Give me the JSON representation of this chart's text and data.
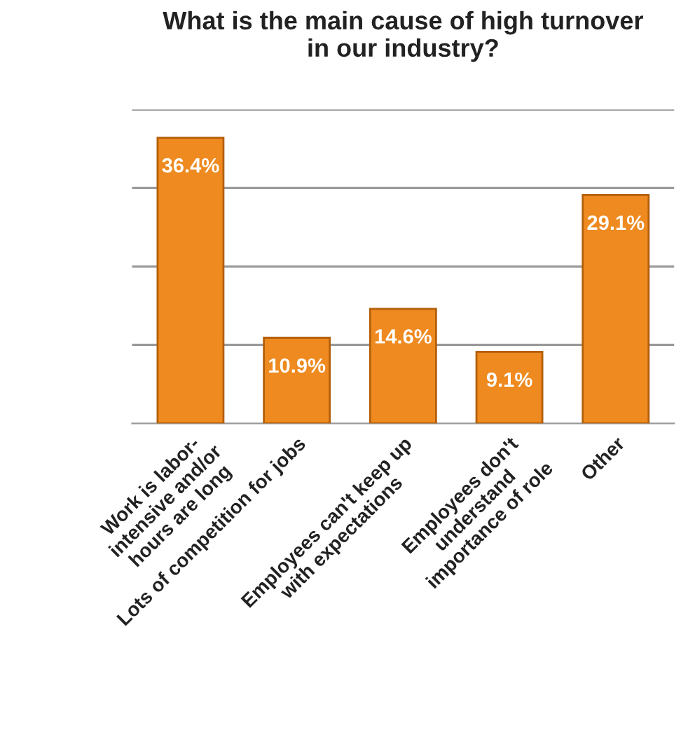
{
  "chart_data": {
    "type": "bar",
    "title": "What is the main cause of high turnover\nin our industry?",
    "categories": [
      "Work is labor-\nintensive and/or\nhours are long",
      "Lots of competition for jobs",
      "Employees can't keep up\nwith expectations",
      "Employees don't\nunderstand\nimportance of role",
      "Other"
    ],
    "values": [
      36.4,
      10.9,
      14.6,
      9.1,
      29.1
    ],
    "value_labels": [
      "36.4%",
      "10.9%",
      "14.6%",
      "9.1%",
      "29.1%"
    ],
    "color": "#ee8a1f",
    "ylim": [
      0,
      40
    ],
    "yticks": [
      {
        "value": 10,
        "label": null
      },
      {
        "value": 20,
        "label": null
      },
      {
        "value": 30,
        "label": null
      },
      {
        "value": 40,
        "label": null
      }
    ],
    "grid": "y",
    "legend": false
  }
}
